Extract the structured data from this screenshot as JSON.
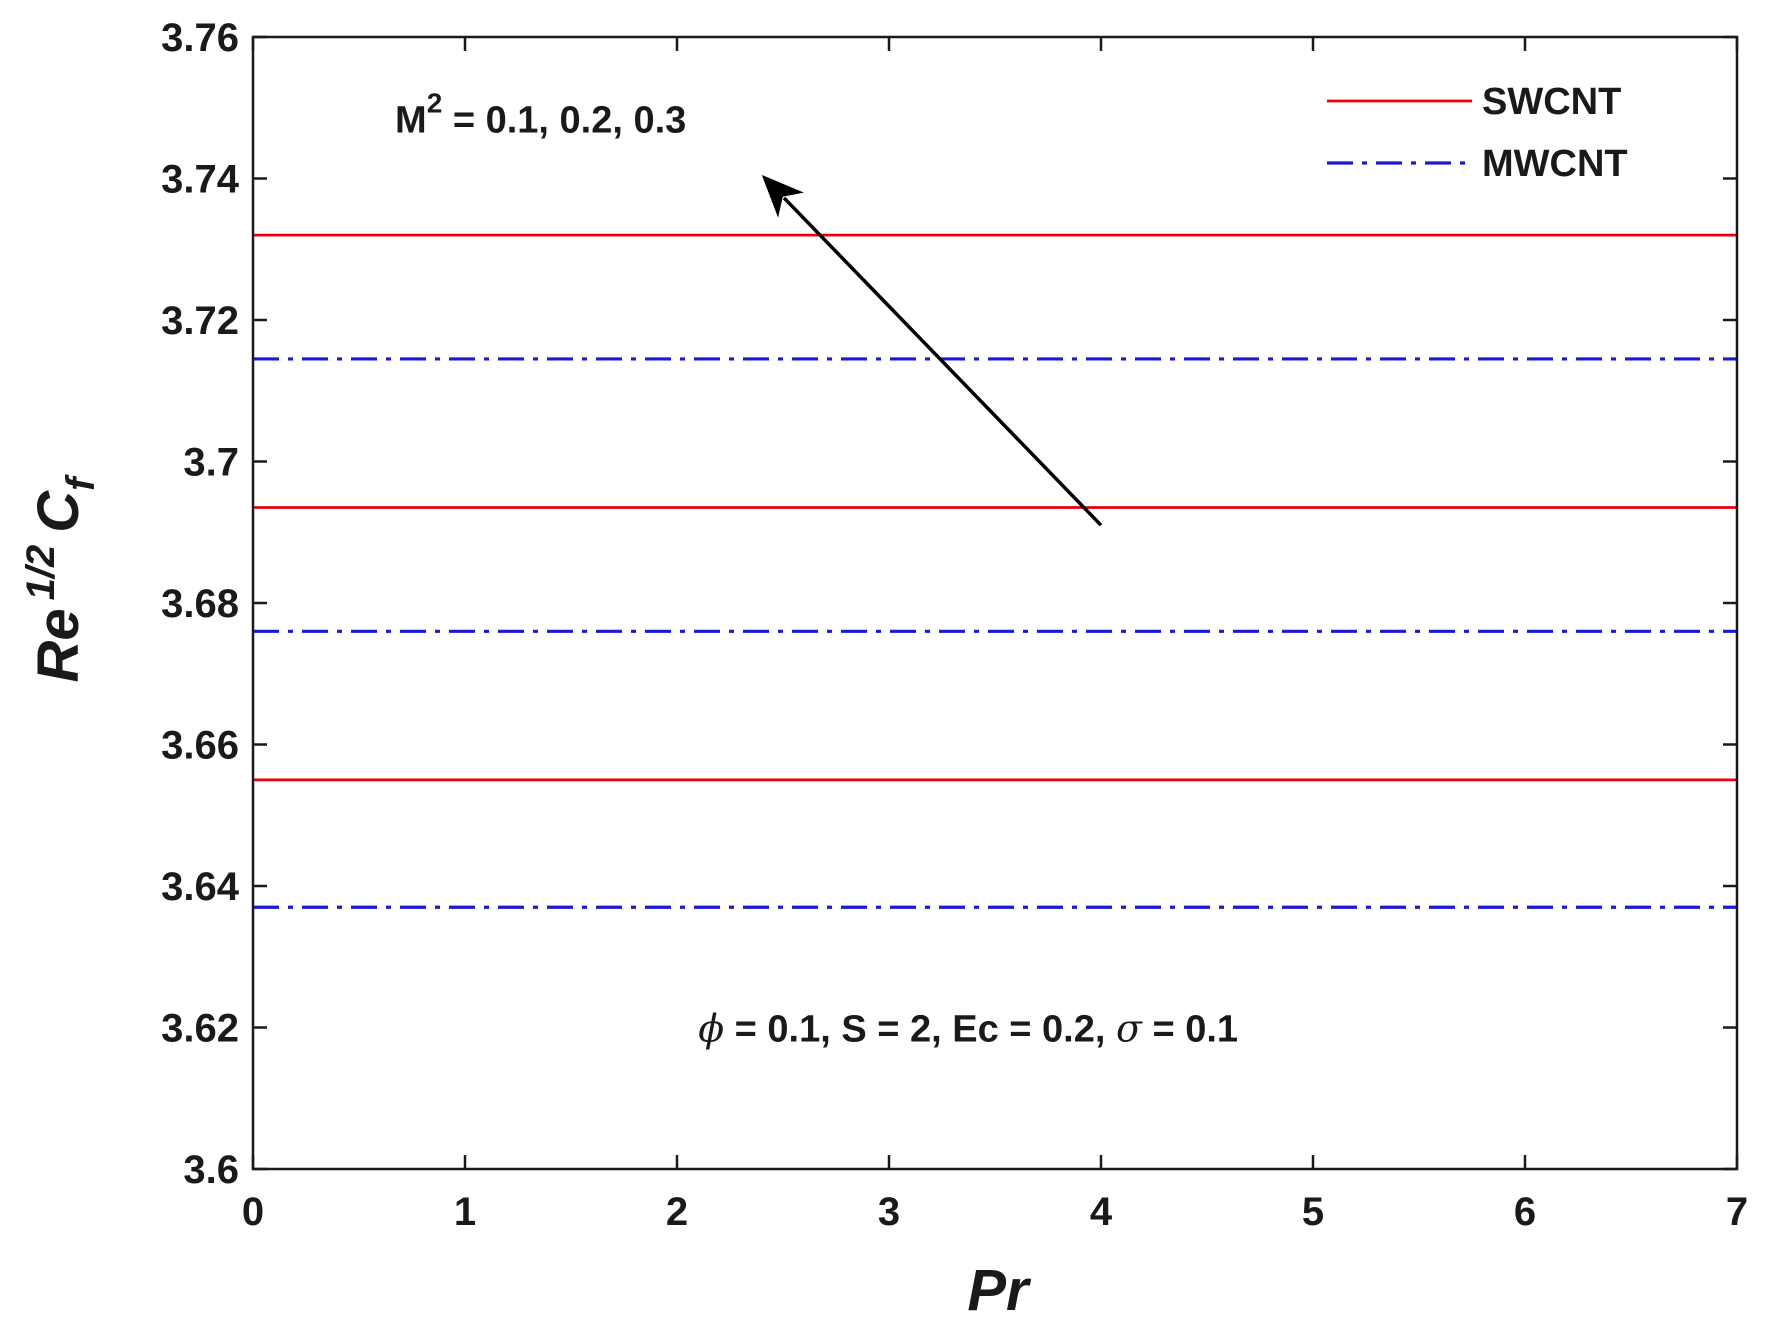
{
  "chart_data": {
    "type": "line",
    "title": "",
    "xlabel": "Pr",
    "ylabel": {
      "base": "Re",
      "sup": "1/2",
      "main": "C",
      "sub": "f"
    },
    "xlim": [
      0,
      7
    ],
    "ylim": [
      3.6,
      3.76
    ],
    "x_ticks": [
      0,
      1,
      2,
      3,
      4,
      5,
      6,
      7
    ],
    "x_tick_labels": [
      "0",
      "1",
      "2",
      "3",
      "4",
      "5",
      "6",
      "7"
    ],
    "y_ticks": [
      3.6,
      3.62,
      3.64,
      3.66,
      3.68,
      3.7,
      3.72,
      3.74,
      3.76
    ],
    "y_tick_labels": [
      "3.6",
      "3.62",
      "3.64",
      "3.66",
      "3.68",
      "3.7",
      "3.72",
      "3.74",
      "3.76"
    ],
    "grid": false,
    "legend_position": "top-right",
    "colors": {
      "SWCNT": "#e8000b",
      "MWCNT": "#1a1ad6",
      "axis": "#1a1a1a"
    },
    "series": [
      {
        "name": "SWCNT",
        "style": "solid",
        "x": [
          0,
          7
        ],
        "values": [
          3.655,
          3.655
        ]
      },
      {
        "name": "SWCNT",
        "style": "solid",
        "x": [
          0,
          7
        ],
        "values": [
          3.6935,
          3.6935
        ]
      },
      {
        "name": "SWCNT",
        "style": "solid",
        "x": [
          0,
          7
        ],
        "values": [
          3.732,
          3.732
        ]
      },
      {
        "name": "MWCNT",
        "style": "dashdot",
        "x": [
          0,
          7
        ],
        "values": [
          3.637,
          3.637
        ]
      },
      {
        "name": "MWCNT",
        "style": "dashdot",
        "x": [
          0,
          7
        ],
        "values": [
          3.676,
          3.676
        ]
      },
      {
        "name": "MWCNT",
        "style": "dashdot",
        "x": [
          0,
          7
        ],
        "values": [
          3.7145,
          3.7145
        ]
      }
    ],
    "legend": [
      {
        "name": "SWCNT",
        "style": "solid"
      },
      {
        "name": "MWCNT",
        "style": "dashdot"
      }
    ],
    "annotations": {
      "arrow": {
        "from": [
          4.0,
          3.691
        ],
        "to": [
          2.4,
          3.7405
        ]
      },
      "m_label": {
        "base": "M",
        "sup": "2",
        "rest": " = 0.1, 0.2, 0.3",
        "anchor": [
          0.67,
          3.7465
        ]
      },
      "params": {
        "phi": "ϕ",
        "part1": " = 0.1, S = 2, Ec = 0.2, ",
        "sigma": "σ",
        "part2": " = 0.1",
        "anchor": [
          2.1,
          3.618
        ]
      }
    }
  }
}
